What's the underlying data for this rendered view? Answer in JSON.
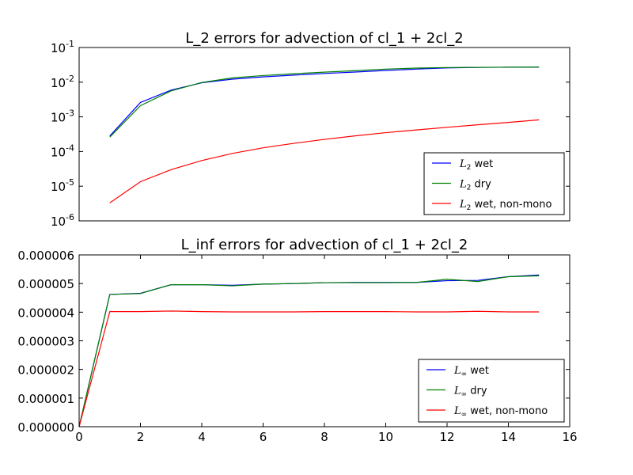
{
  "chart_data": [
    {
      "type": "line",
      "title": "L_2 errors for advection of cl_1 + 2cl_2",
      "xlabel": "",
      "ylabel": "",
      "yscale": "log",
      "xlim": [
        0,
        16
      ],
      "ylim": [
        1e-06,
        0.1
      ],
      "x_ticks_visible": false,
      "y_ticks": [
        {
          "base": "10",
          "exp": "-6"
        },
        {
          "base": "10",
          "exp": "-5"
        },
        {
          "base": "10",
          "exp": "-4"
        },
        {
          "base": "10",
          "exp": "-3"
        },
        {
          "base": "10",
          "exp": "-2"
        },
        {
          "base": "10",
          "exp": "-1"
        }
      ],
      "grid": false,
      "legend_position": "lower-right",
      "x": [
        1,
        2,
        3,
        4,
        5,
        6,
        7,
        8,
        9,
        10,
        11,
        12,
        13,
        14,
        15
      ],
      "series": [
        {
          "name": {
            "sym": "L",
            "sub": "2",
            "text": "wet"
          },
          "color": "#0000ff",
          "values": [
            0.00028,
            0.0026,
            0.0059,
            0.0096,
            0.0122,
            0.0142,
            0.016,
            0.0178,
            0.0196,
            0.0218,
            0.0238,
            0.0258,
            0.0266,
            0.027,
            0.0272
          ]
        },
        {
          "name": {
            "sym": "L",
            "sub": "2",
            "text": "dry"
          },
          "color": "#008000",
          "values": [
            0.00026,
            0.0021,
            0.0056,
            0.0098,
            0.0133,
            0.0155,
            0.0175,
            0.0195,
            0.0215,
            0.0238,
            0.0255,
            0.0264,
            0.0268,
            0.027,
            0.0272
          ]
        },
        {
          "name": {
            "sym": "L",
            "sub": "2",
            "text": "wet, non-mono"
          },
          "color": "#ff0000",
          "values": [
            3.3e-06,
            1.35e-05,
            3e-05,
            5.5e-05,
            8.8e-05,
            0.000128,
            0.000172,
            0.000224,
            0.000283,
            0.00035,
            0.00042,
            0.0005,
            0.00059,
            0.00069,
            0.00082
          ]
        }
      ]
    },
    {
      "type": "line",
      "title": "L_inf errors for advection of cl_1 + 2cl_2",
      "xlabel": "",
      "ylabel": "",
      "yscale": "linear",
      "xlim": [
        0,
        16
      ],
      "ylim": [
        0,
        6e-06
      ],
      "x_ticks": [
        "0",
        "2",
        "4",
        "6",
        "8",
        "10",
        "12",
        "14",
        "16"
      ],
      "y_ticks": [
        "0.000000",
        "0.000001",
        "0.000002",
        "0.000003",
        "0.000004",
        "0.000005",
        "0.000006"
      ],
      "grid": false,
      "legend_position": "lower-right",
      "x": [
        0,
        1,
        2,
        3,
        4,
        5,
        6,
        7,
        8,
        9,
        10,
        11,
        12,
        13,
        14,
        15
      ],
      "series": [
        {
          "name": {
            "sym": "L",
            "sub": "∞",
            "text": "wet"
          },
          "color": "#0000ff",
          "values": [
            0,
            4.62e-06,
            4.66e-06,
            4.96e-06,
            4.96e-06,
            4.94e-06,
            4.98e-06,
            5e-06,
            5.03e-06,
            5.04e-06,
            5.04e-06,
            5.04e-06,
            5.1e-06,
            5.11e-06,
            5.24e-06,
            5.3e-06
          ]
        },
        {
          "name": {
            "sym": "L",
            "sub": "∞",
            "text": "dry"
          },
          "color": "#008000",
          "values": [
            0,
            4.62e-06,
            4.65e-06,
            4.96e-06,
            4.96e-06,
            4.92e-06,
            4.98e-06,
            5e-06,
            5.03e-06,
            5.03e-06,
            5.03e-06,
            5.04e-06,
            5.15e-06,
            5.07e-06,
            5.24e-06,
            5.27e-06
          ]
        },
        {
          "name": {
            "sym": "L",
            "sub": "∞",
            "text": "wet, non-mono"
          },
          "color": "#ff0000",
          "values": [
            0,
            4.02e-06,
            4.02e-06,
            4.04e-06,
            4.02e-06,
            4.01e-06,
            4.01e-06,
            4.01e-06,
            4.02e-06,
            4.02e-06,
            4.02e-06,
            4.01e-06,
            4.01e-06,
            4.03e-06,
            4.01e-06,
            4.01e-06
          ]
        }
      ]
    }
  ]
}
